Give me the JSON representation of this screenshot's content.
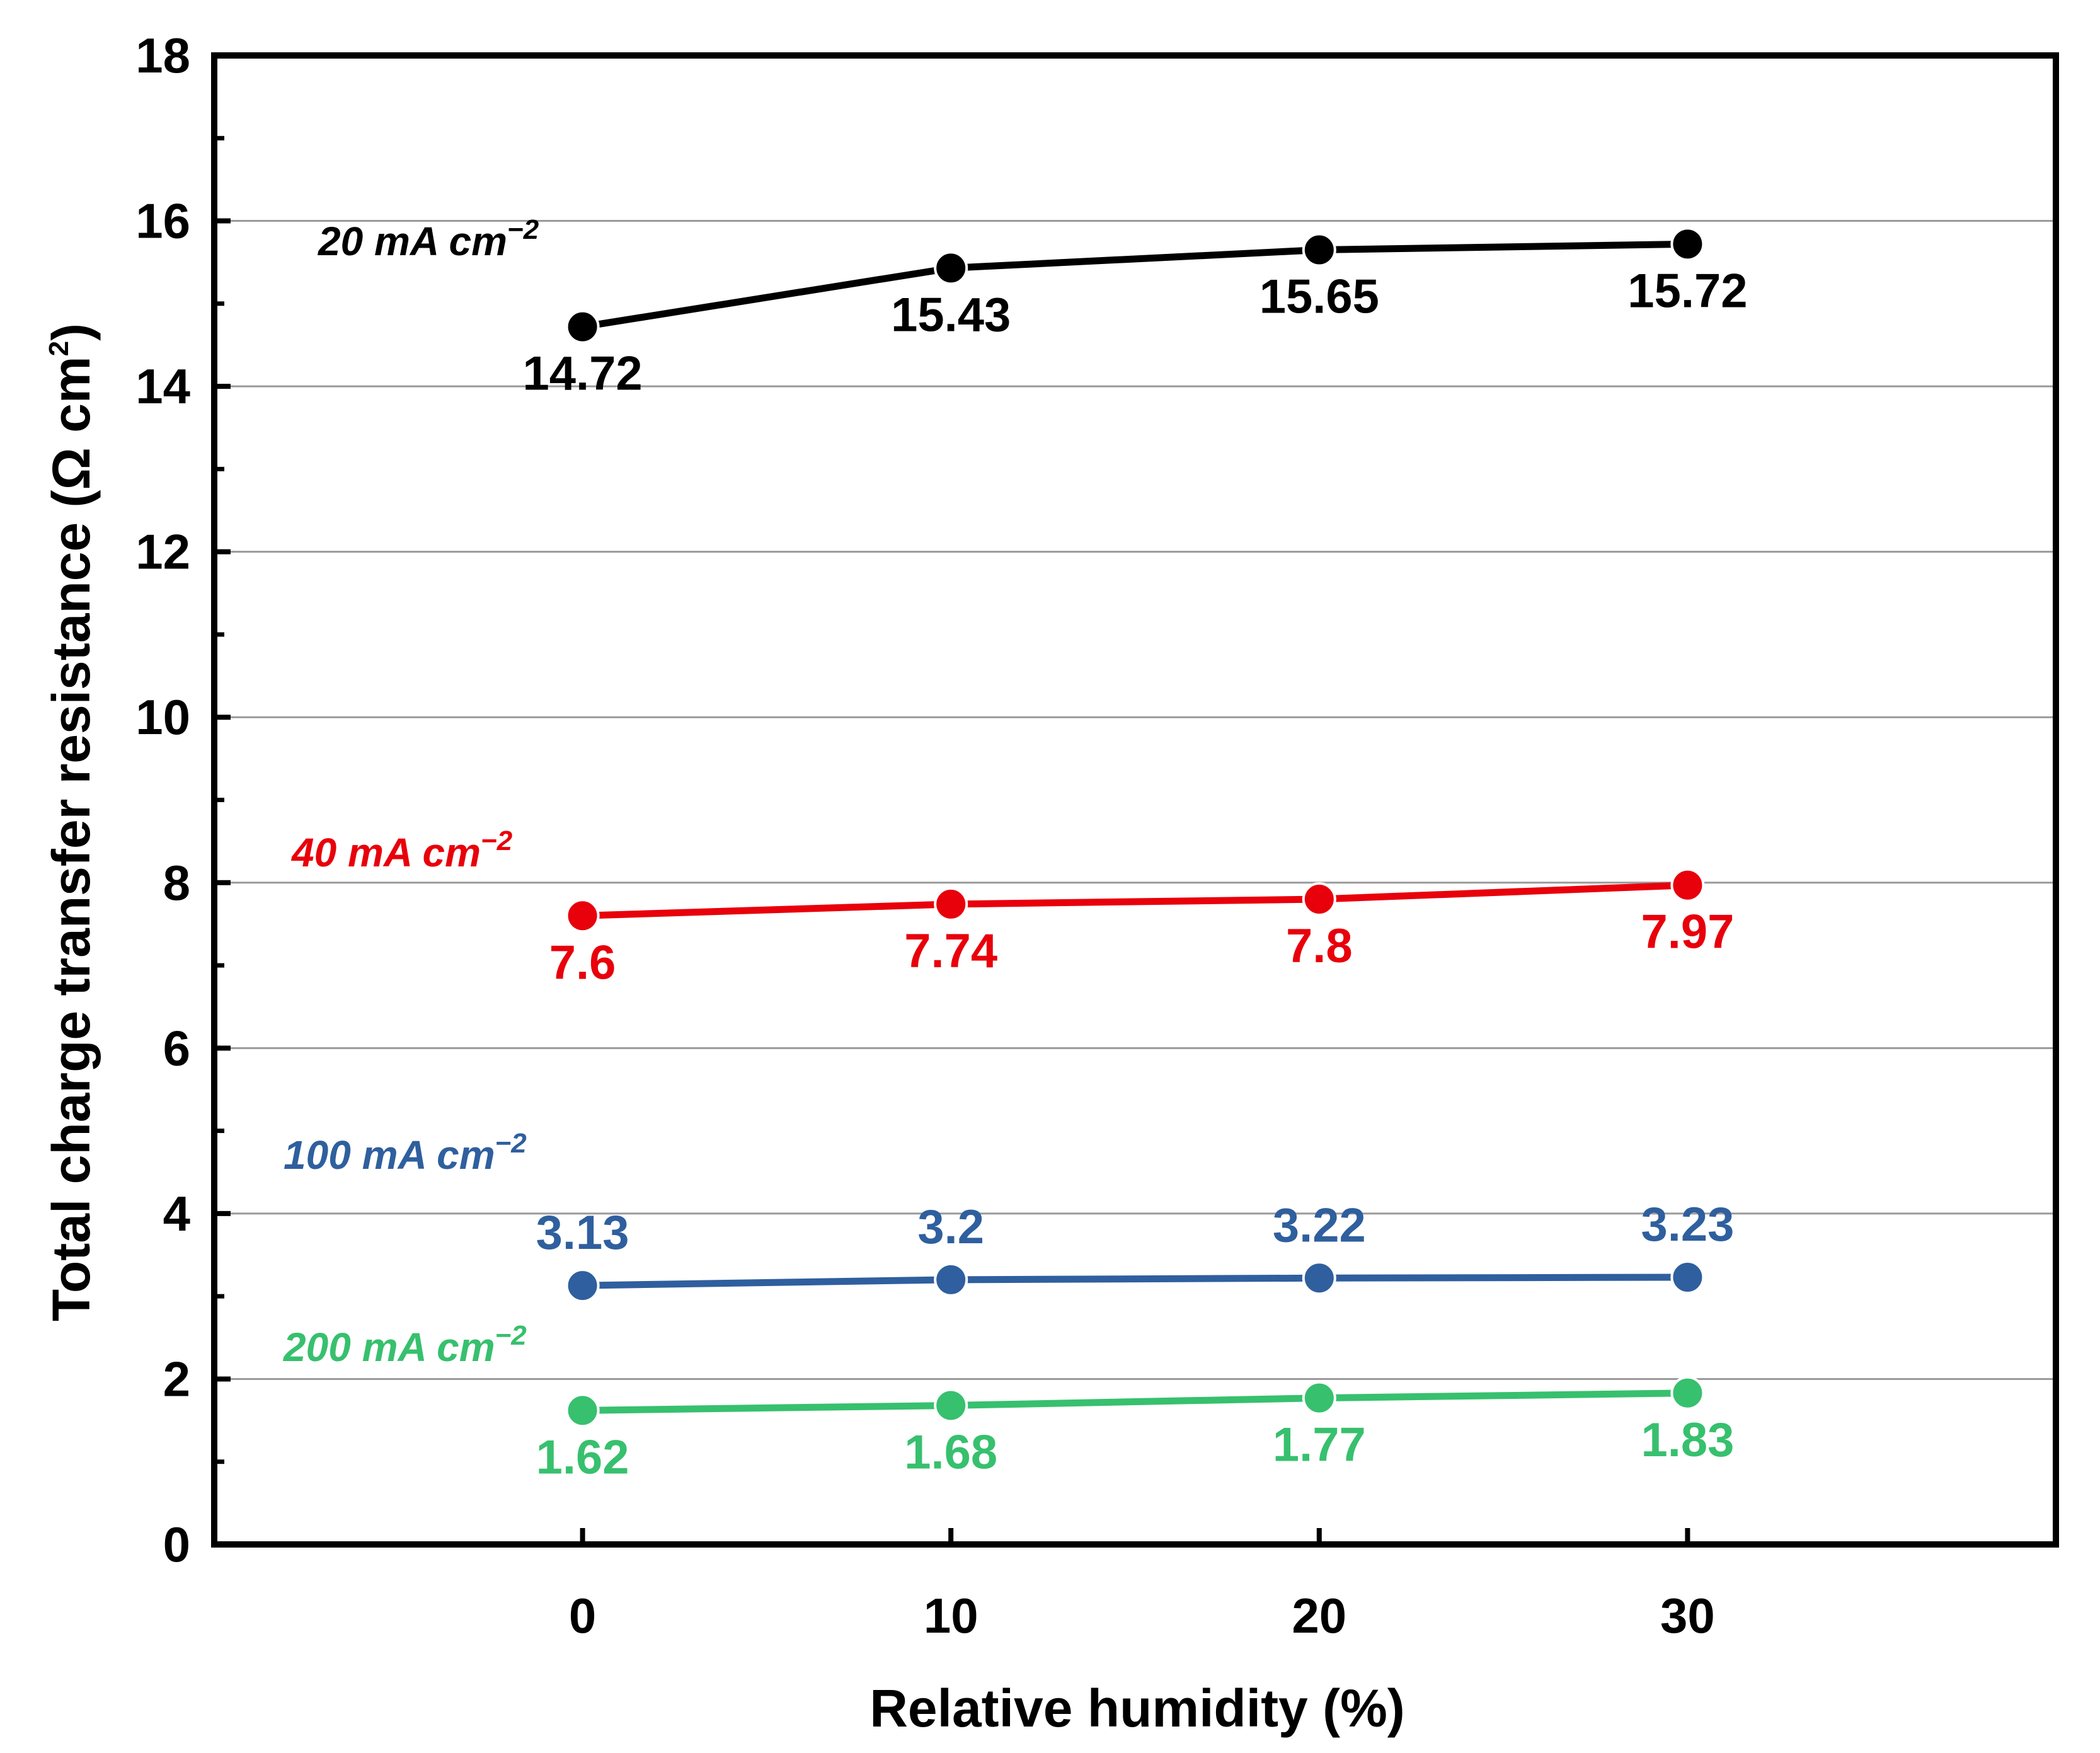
{
  "chart_data": {
    "type": "line",
    "title": "",
    "xlabel": "Relative humidity (%)",
    "ylabel": {
      "main": "Total charge transfer resistance (Ω cm",
      "sup": "2",
      "close": ")"
    },
    "x": [
      0,
      10,
      20,
      30
    ],
    "x_tick_labels": [
      "0",
      "10",
      "20",
      "30"
    ],
    "xlim": [
      -10,
      40
    ],
    "ylim": [
      0,
      18
    ],
    "y_ticks": [
      0,
      2,
      4,
      6,
      8,
      10,
      12,
      14,
      16,
      18
    ],
    "y_tick_labels": [
      "0",
      "2",
      "4",
      "6",
      "8",
      "10",
      "12",
      "14",
      "16",
      "18"
    ],
    "grid": "horizontal",
    "series": [
      {
        "name": "20 mA cm",
        "name_sup": "−2",
        "color": "#000000",
        "values": [
          14.72,
          15.43,
          15.65,
          15.72
        ],
        "labels": [
          "14.72",
          "15.43",
          "15.65",
          "15.72"
        ],
        "label_position": "below"
      },
      {
        "name": "40 mA cm",
        "name_sup": "−2",
        "color": "#e8000b",
        "values": [
          7.6,
          7.74,
          7.8,
          7.97
        ],
        "labels": [
          "7.6",
          "7.74",
          "7.8",
          "7.97"
        ],
        "label_position": "below"
      },
      {
        "name": "100 mA cm",
        "name_sup": "−2",
        "color": "#2f5f9e",
        "values": [
          3.13,
          3.2,
          3.22,
          3.23
        ],
        "labels": [
          "3.13",
          "3.2",
          "3.22",
          "3.23"
        ],
        "label_position": "above"
      },
      {
        "name": "200 mA cm",
        "name_sup": "−2",
        "color": "#37c06e",
        "values": [
          1.62,
          1.68,
          1.77,
          1.83
        ],
        "labels": [
          "1.62",
          "1.68",
          "1.77",
          "1.83"
        ],
        "label_position": "below"
      }
    ]
  }
}
